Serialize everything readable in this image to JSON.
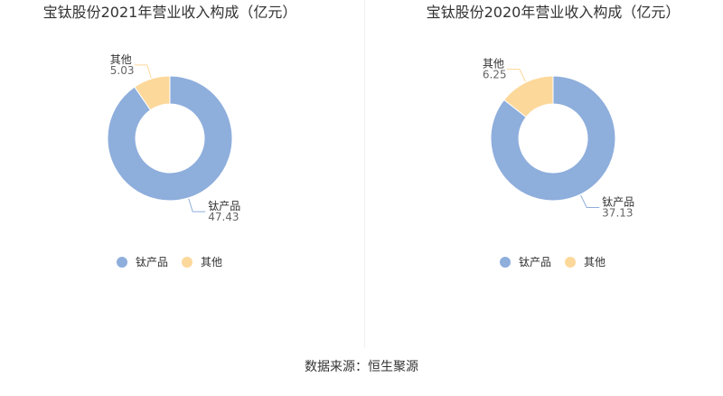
{
  "colors": {
    "钛产品": "#8eaedc",
    "其他": "#fdd89b"
  },
  "chart_data": [
    {
      "type": "pie",
      "donut": true,
      "title": "宝钛股份2021年营业收入构成（亿元）",
      "slices": [
        {
          "label": "钛产品",
          "value": 47.43,
          "value_text": "47.43"
        },
        {
          "label": "其他",
          "value": 5.03,
          "value_text": "5.03"
        }
      ],
      "legend": [
        "钛产品",
        "其他"
      ],
      "legend_placement": "bottom"
    },
    {
      "type": "pie",
      "donut": true,
      "title": "宝钛股份2020年营业收入构成（亿元）",
      "slices": [
        {
          "label": "钛产品",
          "value": 37.13,
          "value_text": "37.13"
        },
        {
          "label": "其他",
          "value": 6.25,
          "value_text": "6.25"
        }
      ],
      "legend": [
        "钛产品",
        "其他"
      ],
      "legend_placement": "bottom"
    }
  ],
  "source": "数据来源：恒生聚源"
}
